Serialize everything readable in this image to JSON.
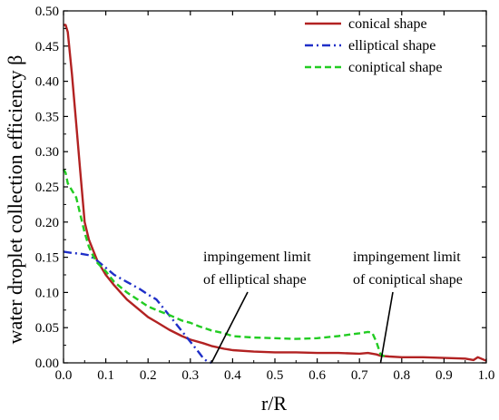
{
  "chart_data": {
    "type": "line",
    "title": "",
    "xlabel": "r/R",
    "ylabel": "water droplet collection efficiency β",
    "xlim": [
      0.0,
      1.0
    ],
    "ylim": [
      0.0,
      0.5
    ],
    "xticks": [
      "0.0",
      "0.1",
      "0.2",
      "0.3",
      "0.4",
      "0.5",
      "0.6",
      "0.7",
      "0.8",
      "0.9",
      "1.0"
    ],
    "yticks": [
      "0.00",
      "0.05",
      "0.10",
      "0.15",
      "0.20",
      "0.25",
      "0.30",
      "0.35",
      "0.40",
      "0.45",
      "0.50"
    ],
    "grid": false,
    "legend": "top-right",
    "series": [
      {
        "name": "conical shape",
        "color": "#b22222",
        "style": "solid",
        "x": [
          0.0,
          0.005,
          0.01,
          0.015,
          0.02,
          0.03,
          0.04,
          0.05,
          0.06,
          0.07,
          0.08,
          0.1,
          0.12,
          0.15,
          0.18,
          0.2,
          0.22,
          0.25,
          0.28,
          0.3,
          0.33,
          0.35,
          0.38,
          0.4,
          0.45,
          0.5,
          0.55,
          0.6,
          0.65,
          0.7,
          0.72,
          0.74,
          0.75,
          0.77,
          0.8,
          0.85,
          0.9,
          0.95,
          0.97,
          0.98,
          1.0
        ],
        "y": [
          0.48,
          0.48,
          0.47,
          0.44,
          0.41,
          0.34,
          0.27,
          0.2,
          0.175,
          0.16,
          0.145,
          0.125,
          0.11,
          0.09,
          0.075,
          0.065,
          0.058,
          0.047,
          0.038,
          0.033,
          0.028,
          0.024,
          0.02,
          0.018,
          0.016,
          0.015,
          0.015,
          0.014,
          0.014,
          0.013,
          0.014,
          0.012,
          0.01,
          0.009,
          0.008,
          0.008,
          0.007,
          0.006,
          0.004,
          0.008,
          0.003
        ]
      },
      {
        "name": "elliptical shape",
        "color": "#1f2fc8",
        "style": "dashdot",
        "x": [
          0.0,
          0.02,
          0.04,
          0.06,
          0.08,
          0.1,
          0.12,
          0.15,
          0.18,
          0.2,
          0.22,
          0.24,
          0.26,
          0.28,
          0.3,
          0.32,
          0.33,
          0.34,
          0.35
        ],
        "y": [
          0.158,
          0.156,
          0.155,
          0.153,
          0.145,
          0.135,
          0.125,
          0.115,
          0.105,
          0.097,
          0.09,
          0.075,
          0.06,
          0.045,
          0.03,
          0.015,
          0.007,
          0.002,
          0.0
        ]
      },
      {
        "name": "coniptical shape",
        "color": "#22cc22",
        "style": "dashed",
        "x": [
          0.0,
          0.005,
          0.01,
          0.02,
          0.03,
          0.04,
          0.05,
          0.06,
          0.07,
          0.08,
          0.1,
          0.12,
          0.15,
          0.18,
          0.2,
          0.22,
          0.25,
          0.28,
          0.3,
          0.32,
          0.35,
          0.38,
          0.4,
          0.45,
          0.5,
          0.55,
          0.6,
          0.65,
          0.7,
          0.72,
          0.73,
          0.74,
          0.75,
          0.76
        ],
        "y": [
          0.275,
          0.27,
          0.255,
          0.245,
          0.235,
          0.21,
          0.185,
          0.165,
          0.152,
          0.142,
          0.13,
          0.115,
          0.1,
          0.088,
          0.08,
          0.075,
          0.068,
          0.06,
          0.057,
          0.052,
          0.046,
          0.042,
          0.038,
          0.036,
          0.035,
          0.034,
          0.035,
          0.038,
          0.042,
          0.044,
          0.043,
          0.03,
          0.012,
          0.009
        ]
      }
    ],
    "annotations": [
      {
        "name": "annotation-elliptical",
        "lines": [
          "impingement limit",
          "of elliptical shape"
        ],
        "arrow_to": [
          0.35,
          0.0
        ]
      },
      {
        "name": "annotation-coniptical",
        "lines": [
          "impingement limit",
          "of coniptical shape"
        ],
        "arrow_to": [
          0.75,
          0.0
        ]
      }
    ]
  }
}
